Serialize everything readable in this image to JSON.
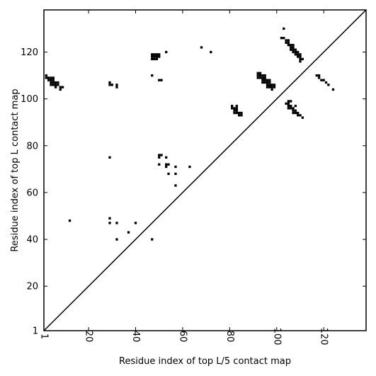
{
  "chart_data": {
    "type": "scatter",
    "marker": "square",
    "xlabel": "Residue index of top L/5 contact map",
    "ylabel": "Residue index of top L contact map",
    "xlim": [
      1,
      138
    ],
    "ylim": [
      1,
      138
    ],
    "x_ticks": [
      1,
      20,
      40,
      60,
      80,
      100,
      120
    ],
    "y_ticks": [
      1,
      20,
      40,
      60,
      80,
      100,
      120
    ],
    "grid": false,
    "diagonal_line": true,
    "colors": {
      "marker": "#000000",
      "axes": "#000000",
      "background": "#ffffff"
    },
    "points": [
      [
        2,
        110
      ],
      [
        2,
        109
      ],
      [
        3,
        109
      ],
      [
        4,
        109
      ],
      [
        5,
        109
      ],
      [
        3,
        108
      ],
      [
        4,
        108
      ],
      [
        5,
        108
      ],
      [
        4,
        107
      ],
      [
        5,
        107
      ],
      [
        6,
        107
      ],
      [
        7,
        107
      ],
      [
        4,
        106
      ],
      [
        5,
        106
      ],
      [
        6,
        106
      ],
      [
        7,
        106
      ],
      [
        6,
        105
      ],
      [
        8,
        105
      ],
      [
        9,
        105
      ],
      [
        8,
        104
      ],
      [
        29,
        107
      ],
      [
        29,
        106
      ],
      [
        30,
        106
      ],
      [
        32,
        106
      ],
      [
        32,
        105
      ],
      [
        47,
        119
      ],
      [
        48,
        119
      ],
      [
        49,
        119
      ],
      [
        50,
        119
      ],
      [
        47,
        118
      ],
      [
        48,
        118
      ],
      [
        49,
        118
      ],
      [
        50,
        118
      ],
      [
        47,
        117
      ],
      [
        48,
        117
      ],
      [
        49,
        117
      ],
      [
        53,
        120
      ],
      [
        68,
        122
      ],
      [
        72,
        120
      ],
      [
        47,
        110
      ],
      [
        50,
        108
      ],
      [
        51,
        108
      ],
      [
        29,
        75
      ],
      [
        50,
        76
      ],
      [
        50,
        75
      ],
      [
        51,
        76
      ],
      [
        53,
        75
      ],
      [
        50,
        72
      ],
      [
        53,
        72
      ],
      [
        54,
        72
      ],
      [
        53,
        71
      ],
      [
        57,
        71
      ],
      [
        63,
        71
      ],
      [
        54,
        68
      ],
      [
        57,
        68
      ],
      [
        57,
        63
      ],
      [
        12,
        48
      ],
      [
        29,
        49
      ],
      [
        29,
        47
      ],
      [
        32,
        47
      ],
      [
        40,
        47
      ],
      [
        37,
        43
      ],
      [
        32,
        40
      ],
      [
        47,
        40
      ],
      [
        103,
        130
      ],
      [
        102,
        126
      ],
      [
        103,
        126
      ],
      [
        104,
        125
      ],
      [
        105,
        125
      ],
      [
        104,
        124
      ],
      [
        105,
        124
      ],
      [
        105,
        123
      ],
      [
        106,
        123
      ],
      [
        107,
        123
      ],
      [
        106,
        122
      ],
      [
        107,
        122
      ],
      [
        106,
        121
      ],
      [
        107,
        121
      ],
      [
        108,
        121
      ],
      [
        107,
        120
      ],
      [
        108,
        120
      ],
      [
        109,
        120
      ],
      [
        108,
        119
      ],
      [
        109,
        119
      ],
      [
        110,
        119
      ],
      [
        109,
        118
      ],
      [
        110,
        118
      ],
      [
        110,
        117
      ],
      [
        111,
        117
      ],
      [
        110,
        116
      ],
      [
        92,
        111
      ],
      [
        93,
        111
      ],
      [
        92,
        110
      ],
      [
        93,
        110
      ],
      [
        94,
        110
      ],
      [
        95,
        110
      ],
      [
        92,
        109
      ],
      [
        93,
        109
      ],
      [
        94,
        109
      ],
      [
        95,
        109
      ],
      [
        94,
        108
      ],
      [
        95,
        108
      ],
      [
        96,
        108
      ],
      [
        97,
        108
      ],
      [
        94,
        107
      ],
      [
        95,
        107
      ],
      [
        96,
        107
      ],
      [
        97,
        107
      ],
      [
        96,
        106
      ],
      [
        97,
        106
      ],
      [
        98,
        106
      ],
      [
        99,
        106
      ],
      [
        96,
        105
      ],
      [
        97,
        105
      ],
      [
        98,
        105
      ],
      [
        99,
        105
      ],
      [
        98,
        104
      ],
      [
        117,
        110
      ],
      [
        118,
        110
      ],
      [
        118,
        109
      ],
      [
        119,
        108
      ],
      [
        120,
        108
      ],
      [
        121,
        107
      ],
      [
        122,
        106
      ],
      [
        124,
        104
      ],
      [
        105,
        99
      ],
      [
        106,
        99
      ],
      [
        104,
        98
      ],
      [
        105,
        98
      ],
      [
        105,
        97
      ],
      [
        106,
        97
      ],
      [
        108,
        97
      ],
      [
        105,
        96
      ],
      [
        106,
        96
      ],
      [
        107,
        96
      ],
      [
        107,
        95
      ],
      [
        108,
        95
      ],
      [
        107,
        94
      ],
      [
        108,
        94
      ],
      [
        109,
        94
      ],
      [
        109,
        93
      ],
      [
        110,
        93
      ],
      [
        111,
        92
      ],
      [
        81,
        97
      ],
      [
        83,
        97
      ],
      [
        81,
        96
      ],
      [
        82,
        96
      ],
      [
        83,
        96
      ],
      [
        82,
        95
      ],
      [
        83,
        95
      ],
      [
        82,
        94
      ],
      [
        83,
        94
      ],
      [
        84,
        94
      ],
      [
        85,
        94
      ],
      [
        84,
        93
      ],
      [
        85,
        93
      ]
    ]
  }
}
